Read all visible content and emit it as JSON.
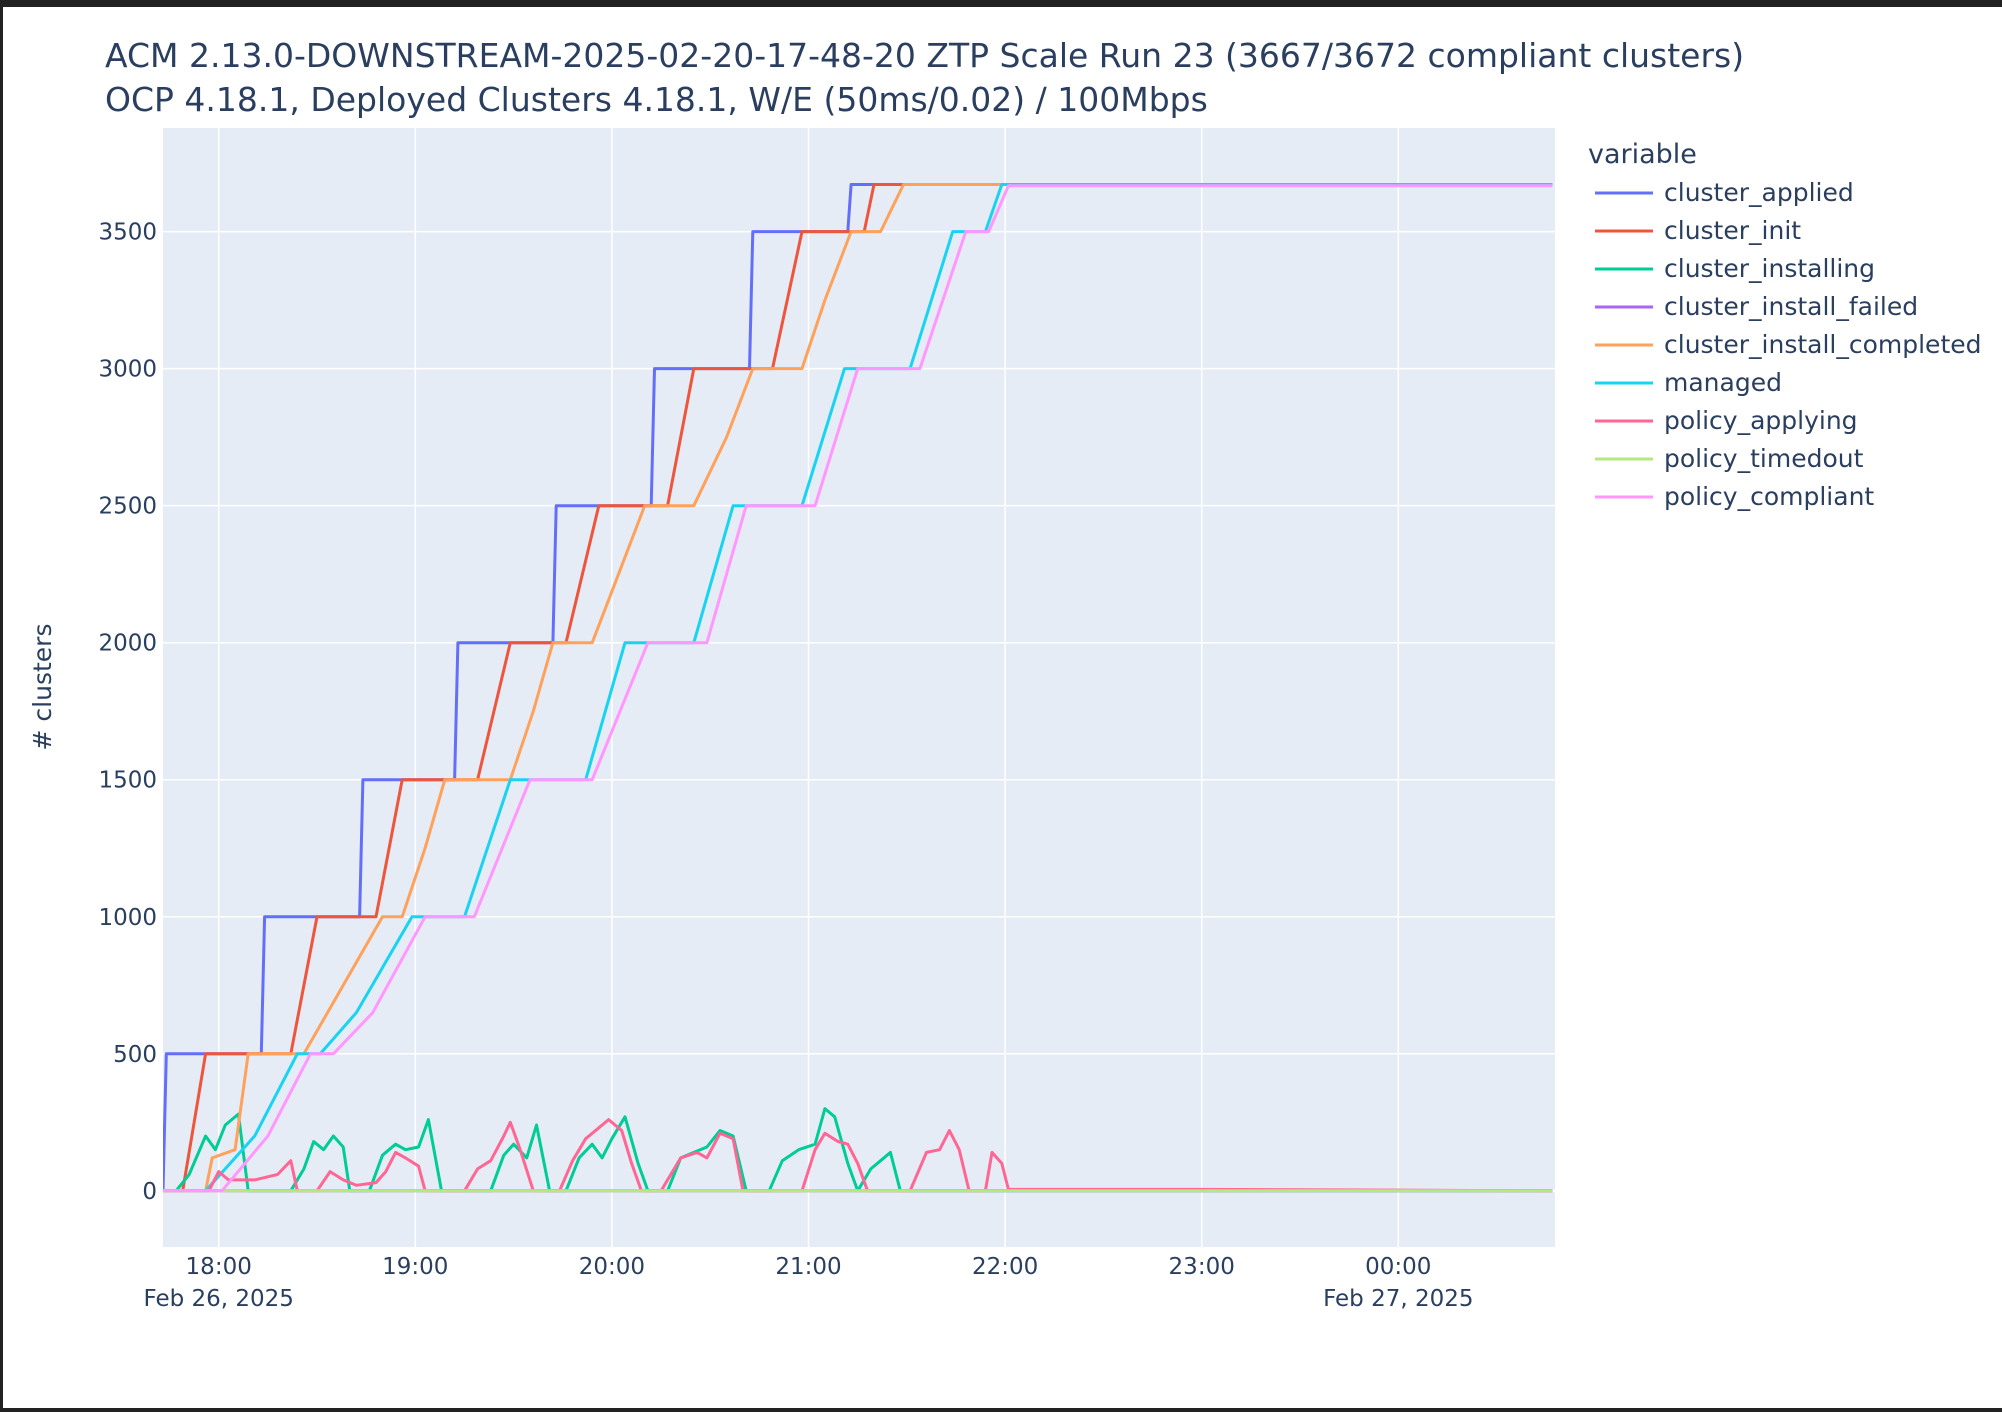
{
  "chart_data": {
    "type": "line",
    "title": "ACM 2.13.0-DOWNSTREAM-2025-02-20-17-48-20 ZTP Scale Run 23 (3667/3672 compliant clusters)",
    "subtitle": "OCP 4.18.1, Deployed Clusters 4.18.1, W/E (50ms/0.02) / 100Mbps",
    "xlabel": "",
    "ylabel": "# clusters",
    "legend_title": "variable",
    "legend_placement": "right",
    "grid": true,
    "xlim": [
      "2025-02-26 17:43",
      "2025-02-27 00:47"
    ],
    "ylim": [
      -205,
      3878
    ],
    "x_ticks": [
      {
        "time": "18:00",
        "label": "18:00",
        "date": "Feb 26, 2025"
      },
      {
        "time": "19:00",
        "label": "19:00",
        "date": ""
      },
      {
        "time": "20:00",
        "label": "20:00",
        "date": ""
      },
      {
        "time": "21:00",
        "label": "21:00",
        "date": ""
      },
      {
        "time": "22:00",
        "label": "22:00",
        "date": ""
      },
      {
        "time": "23:00",
        "label": "23:00",
        "date": ""
      },
      {
        "time": "00:00",
        "label": "00:00",
        "date": "Feb 27, 2025"
      }
    ],
    "y_ticks": [
      0,
      500,
      1000,
      1500,
      2000,
      2500,
      3000,
      3500
    ],
    "colors": {
      "plot_bg": "#E5ECF6",
      "grid": "#ffffff"
    },
    "series": [
      {
        "name": "cluster_applied",
        "color": "#636efa",
        "points": [
          [
            "17:43",
            0
          ],
          [
            "17:44",
            500
          ],
          [
            "18:13",
            500
          ],
          [
            "18:14",
            1000
          ],
          [
            "18:43",
            1000
          ],
          [
            "18:44",
            1500
          ],
          [
            "19:12",
            1500
          ],
          [
            "19:13",
            2000
          ],
          [
            "19:42",
            2000
          ],
          [
            "19:43",
            2500
          ],
          [
            "20:12",
            2500
          ],
          [
            "20:13",
            3000
          ],
          [
            "20:42",
            3000
          ],
          [
            "20:43",
            3500
          ],
          [
            "21:12",
            3500
          ],
          [
            "21:13",
            3672
          ],
          [
            "00:47",
            3672
          ]
        ]
      },
      {
        "name": "cluster_init",
        "color": "#EF553B",
        "points": [
          [
            "17:43",
            0
          ],
          [
            "17:49",
            0
          ],
          [
            "17:56",
            500
          ],
          [
            "18:22",
            500
          ],
          [
            "18:30",
            1000
          ],
          [
            "18:48",
            1000
          ],
          [
            "18:56",
            1500
          ],
          [
            "19:19",
            1500
          ],
          [
            "19:29",
            2000
          ],
          [
            "19:46",
            2000
          ],
          [
            "19:56",
            2500
          ],
          [
            "20:17",
            2500
          ],
          [
            "20:25",
            3000
          ],
          [
            "20:49",
            3000
          ],
          [
            "20:58",
            3500
          ],
          [
            "21:17",
            3500
          ],
          [
            "21:20",
            3672
          ],
          [
            "00:47",
            3672
          ]
        ]
      },
      {
        "name": "cluster_installing",
        "color": "#00cc96",
        "points": [
          [
            "17:43",
            0
          ],
          [
            "17:47",
            0
          ],
          [
            "17:51",
            60
          ],
          [
            "17:56",
            200
          ],
          [
            "17:59",
            150
          ],
          [
            "18:02",
            240
          ],
          [
            "18:06",
            280
          ],
          [
            "18:09",
            0
          ],
          [
            "18:22",
            0
          ],
          [
            "18:26",
            80
          ],
          [
            "18:29",
            180
          ],
          [
            "18:32",
            150
          ],
          [
            "18:35",
            200
          ],
          [
            "18:38",
            160
          ],
          [
            "18:40",
            0
          ],
          [
            "18:46",
            0
          ],
          [
            "18:50",
            130
          ],
          [
            "18:54",
            170
          ],
          [
            "18:57",
            150
          ],
          [
            "19:01",
            160
          ],
          [
            "19:04",
            260
          ],
          [
            "19:08",
            0
          ],
          [
            "19:23",
            0
          ],
          [
            "19:27",
            130
          ],
          [
            "19:30",
            170
          ],
          [
            "19:34",
            120
          ],
          [
            "19:37",
            240
          ],
          [
            "19:41",
            0
          ],
          [
            "19:46",
            0
          ],
          [
            "19:50",
            120
          ],
          [
            "19:54",
            170
          ],
          [
            "19:57",
            120
          ],
          [
            "20:00",
            190
          ],
          [
            "20:04",
            270
          ],
          [
            "20:08",
            100
          ],
          [
            "20:11",
            0
          ],
          [
            "20:17",
            0
          ],
          [
            "20:21",
            120
          ],
          [
            "20:25",
            140
          ],
          [
            "20:29",
            160
          ],
          [
            "20:33",
            220
          ],
          [
            "20:37",
            200
          ],
          [
            "20:41",
            0
          ],
          [
            "20:48",
            0
          ],
          [
            "20:52",
            110
          ],
          [
            "20:57",
            150
          ],
          [
            "21:02",
            170
          ],
          [
            "21:05",
            300
          ],
          [
            "21:08",
            270
          ],
          [
            "21:12",
            100
          ],
          [
            "21:15",
            0
          ],
          [
            "21:19",
            80
          ],
          [
            "21:22",
            110
          ],
          [
            "21:25",
            140
          ],
          [
            "21:28",
            0
          ],
          [
            "00:47",
            0
          ]
        ]
      },
      {
        "name": "cluster_install_failed",
        "color": "#ab63fa",
        "points": [
          [
            "17:43",
            0
          ],
          [
            "00:47",
            0
          ]
        ]
      },
      {
        "name": "cluster_install_completed",
        "color": "#FFA15A",
        "points": [
          [
            "17:43",
            0
          ],
          [
            "17:56",
            0
          ],
          [
            "17:58",
            120
          ],
          [
            "18:05",
            150
          ],
          [
            "18:09",
            500
          ],
          [
            "18:26",
            500
          ],
          [
            "18:38",
            750
          ],
          [
            "18:50",
            1000
          ],
          [
            "18:56",
            1000
          ],
          [
            "19:03",
            1250
          ],
          [
            "19:09",
            1500
          ],
          [
            "19:29",
            1500
          ],
          [
            "19:36",
            1750
          ],
          [
            "19:42",
            2000
          ],
          [
            "19:54",
            2000
          ],
          [
            "20:02",
            2250
          ],
          [
            "20:10",
            2500
          ],
          [
            "20:25",
            2500
          ],
          [
            "20:35",
            2750
          ],
          [
            "20:43",
            3000
          ],
          [
            "20:58",
            3000
          ],
          [
            "21:05",
            3250
          ],
          [
            "21:13",
            3500
          ],
          [
            "21:22",
            3500
          ],
          [
            "21:29",
            3672
          ],
          [
            "00:47",
            3672
          ]
        ]
      },
      {
        "name": "managed",
        "color": "#19d3f3",
        "points": [
          [
            "17:43",
            0
          ],
          [
            "17:56",
            0
          ],
          [
            "18:11",
            200
          ],
          [
            "18:24",
            500
          ],
          [
            "18:31",
            500
          ],
          [
            "18:42",
            650
          ],
          [
            "18:59",
            1000
          ],
          [
            "19:15",
            1000
          ],
          [
            "19:29",
            1500
          ],
          [
            "19:52",
            1500
          ],
          [
            "20:04",
            2000
          ],
          [
            "20:25",
            2000
          ],
          [
            "20:37",
            2500
          ],
          [
            "20:58",
            2500
          ],
          [
            "21:11",
            3000
          ],
          [
            "21:31",
            3000
          ],
          [
            "21:44",
            3500
          ],
          [
            "21:54",
            3500
          ],
          [
            "21:59",
            3672
          ],
          [
            "00:47",
            3672
          ]
        ]
      },
      {
        "name": "policy_applying",
        "color": "#FF6692",
        "points": [
          [
            "17:43",
            0
          ],
          [
            "17:57",
            0
          ],
          [
            "18:00",
            70
          ],
          [
            "18:03",
            40
          ],
          [
            "18:11",
            40
          ],
          [
            "18:18",
            60
          ],
          [
            "18:22",
            110
          ],
          [
            "18:24",
            0
          ],
          [
            "18:30",
            0
          ],
          [
            "18:34",
            70
          ],
          [
            "18:38",
            40
          ],
          [
            "18:42",
            20
          ],
          [
            "18:48",
            30
          ],
          [
            "18:51",
            70
          ],
          [
            "18:54",
            140
          ],
          [
            "18:57",
            120
          ],
          [
            "19:01",
            90
          ],
          [
            "19:03",
            0
          ],
          [
            "19:15",
            0
          ],
          [
            "19:19",
            80
          ],
          [
            "19:23",
            110
          ],
          [
            "19:27",
            200
          ],
          [
            "19:29",
            250
          ],
          [
            "19:32",
            150
          ],
          [
            "19:36",
            0
          ],
          [
            "19:44",
            0
          ],
          [
            "19:48",
            110
          ],
          [
            "19:52",
            190
          ],
          [
            "19:56",
            230
          ],
          [
            "19:59",
            260
          ],
          [
            "20:03",
            220
          ],
          [
            "20:06",
            100
          ],
          [
            "20:09",
            0
          ],
          [
            "20:15",
            0
          ],
          [
            "20:21",
            120
          ],
          [
            "20:26",
            140
          ],
          [
            "20:29",
            120
          ],
          [
            "20:33",
            210
          ],
          [
            "20:37",
            190
          ],
          [
            "20:40",
            0
          ],
          [
            "20:58",
            0
          ],
          [
            "21:02",
            150
          ],
          [
            "21:05",
            210
          ],
          [
            "21:09",
            180
          ],
          [
            "21:12",
            170
          ],
          [
            "21:15",
            100
          ],
          [
            "21:18",
            0
          ],
          [
            "21:31",
            0
          ],
          [
            "21:36",
            140
          ],
          [
            "21:40",
            150
          ],
          [
            "21:43",
            220
          ],
          [
            "21:46",
            150
          ],
          [
            "21:49",
            0
          ],
          [
            "21:54",
            0
          ],
          [
            "21:56",
            140
          ],
          [
            "21:59",
            100
          ],
          [
            "22:01",
            5
          ],
          [
            "23:00",
            5
          ],
          [
            "00:47",
            0
          ]
        ]
      },
      {
        "name": "policy_timedout",
        "color": "#B6E880",
        "points": [
          [
            "17:43",
            0
          ],
          [
            "00:47",
            0
          ]
        ]
      },
      {
        "name": "policy_compliant",
        "color": "#FF97FF",
        "points": [
          [
            "17:43",
            0
          ],
          [
            "18:01",
            0
          ],
          [
            "18:15",
            200
          ],
          [
            "18:28",
            500
          ],
          [
            "18:35",
            500
          ],
          [
            "18:47",
            650
          ],
          [
            "19:03",
            1000
          ],
          [
            "19:18",
            1000
          ],
          [
            "19:35",
            1500
          ],
          [
            "19:54",
            1500
          ],
          [
            "20:11",
            2000
          ],
          [
            "20:29",
            2000
          ],
          [
            "20:41",
            2500
          ],
          [
            "21:02",
            2500
          ],
          [
            "21:15",
            3000
          ],
          [
            "21:34",
            3000
          ],
          [
            "21:48",
            3500
          ],
          [
            "21:55",
            3500
          ],
          [
            "22:01",
            3667
          ],
          [
            "00:47",
            3667
          ]
        ]
      }
    ]
  }
}
